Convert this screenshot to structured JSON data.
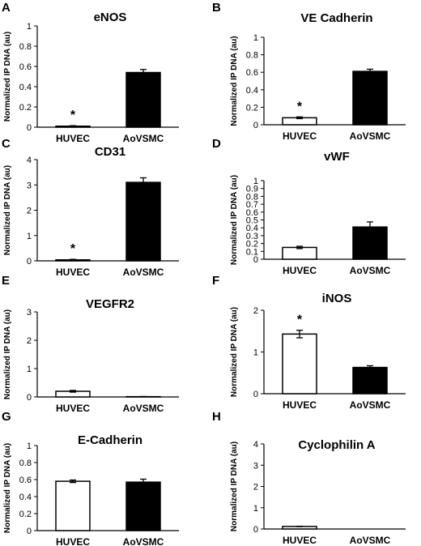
{
  "chart_data": [
    {
      "panel": "A",
      "type": "bar",
      "title": "eNOS",
      "ylabel": "Normalized IP DNA (au)",
      "categories": [
        "HUVEC",
        "AoVSMC"
      ],
      "values": [
        0.01,
        0.54
      ],
      "errors": [
        0.005,
        0.03
      ],
      "fill_colors": [
        "#ffffff",
        "#000000"
      ],
      "ylim": [
        0,
        1
      ],
      "yticks": [
        "0",
        "0.2",
        "0.4",
        "0.6",
        "0.8",
        "1"
      ],
      "significance": [
        "*",
        ""
      ]
    },
    {
      "panel": "B",
      "type": "bar",
      "title": "VE Cadherin",
      "ylabel": "Normalized IP DNA (au)",
      "categories": [
        "HUVEC",
        "AoVSMC"
      ],
      "values": [
        0.08,
        0.61
      ],
      "errors": [
        0.01,
        0.025
      ],
      "fill_colors": [
        "#ffffff",
        "#000000"
      ],
      "ylim": [
        0,
        1
      ],
      "yticks": [
        "0",
        "0.2",
        "0.4",
        "0.6",
        "0.8",
        "1"
      ],
      "significance": [
        "*",
        ""
      ]
    },
    {
      "panel": "C",
      "type": "bar",
      "title": "CD31",
      "ylabel": "Normalized IP DNA (au)",
      "categories": [
        "HUVEC",
        "AoVSMC"
      ],
      "values": [
        0.04,
        3.1
      ],
      "errors": [
        0.02,
        0.18
      ],
      "fill_colors": [
        "#ffffff",
        "#000000"
      ],
      "ylim": [
        0,
        4
      ],
      "yticks": [
        "0",
        "1",
        "2",
        "3",
        "4"
      ],
      "significance": [
        "*",
        ""
      ]
    },
    {
      "panel": "D",
      "type": "bar",
      "title": "vWF",
      "ylabel": "Normalized IP DNA (au)",
      "categories": [
        "HUVEC",
        "AoVSMC"
      ],
      "values": [
        0.15,
        0.41
      ],
      "errors": [
        0.015,
        0.065
      ],
      "fill_colors": [
        "#ffffff",
        "#000000"
      ],
      "ylim": [
        0,
        1
      ],
      "yticks": [
        "0",
        "0.1",
        "0.2",
        "0.3",
        "0.4",
        "0.5",
        "0.6",
        "0.7",
        "0.8",
        "0.9",
        "1"
      ],
      "significance": [
        "",
        ""
      ]
    },
    {
      "panel": "E",
      "type": "bar",
      "title": "VEGFR2",
      "ylabel": "Normalized IP DNA (au)",
      "categories": [
        "HUVEC",
        "AoVSMC"
      ],
      "values": [
        0.2,
        0.01
      ],
      "errors": [
        0.03,
        0.005
      ],
      "fill_colors": [
        "#ffffff",
        "#000000"
      ],
      "ylim": [
        0,
        3
      ],
      "yticks": [
        "0",
        "1",
        "2",
        "3"
      ],
      "significance": [
        "",
        ""
      ]
    },
    {
      "panel": "F",
      "type": "bar",
      "title": "iNOS",
      "ylabel": "Normalized IP DNA (au)",
      "categories": [
        "HUVEC",
        "AoVSMC"
      ],
      "values": [
        1.43,
        0.63
      ],
      "errors": [
        0.09,
        0.04
      ],
      "fill_colors": [
        "#ffffff",
        "#000000"
      ],
      "ylim": [
        0,
        2
      ],
      "yticks": [
        "0",
        "1",
        "2"
      ],
      "significance": [
        "*",
        ""
      ]
    },
    {
      "panel": "G",
      "type": "bar",
      "title": "E-Cadherin",
      "ylabel": "Normalized IP DNA (au)",
      "categories": [
        "HUVEC",
        "AoVSMC"
      ],
      "values": [
        0.58,
        0.57
      ],
      "errors": [
        0.015,
        0.035
      ],
      "fill_colors": [
        "#ffffff",
        "#000000"
      ],
      "ylim": [
        0,
        1
      ],
      "yticks": [
        "0",
        "0.2",
        "0.4",
        "0.6",
        "0.8",
        "1"
      ],
      "significance": [
        "",
        ""
      ]
    },
    {
      "panel": "H",
      "type": "bar",
      "title": "Cyclophilin A",
      "ylabel": "Normalized IP DNA (au)",
      "categories": [
        "HUVEC",
        "AoVSMC"
      ],
      "values": [
        0.12,
        0.0
      ],
      "errors": [
        0.01,
        0.0
      ],
      "fill_colors": [
        "#ffffff",
        "#000000"
      ],
      "ylim": [
        0,
        4
      ],
      "yticks": [
        "0",
        "1",
        "2",
        "3",
        "4"
      ],
      "significance": [
        "",
        ""
      ]
    }
  ]
}
